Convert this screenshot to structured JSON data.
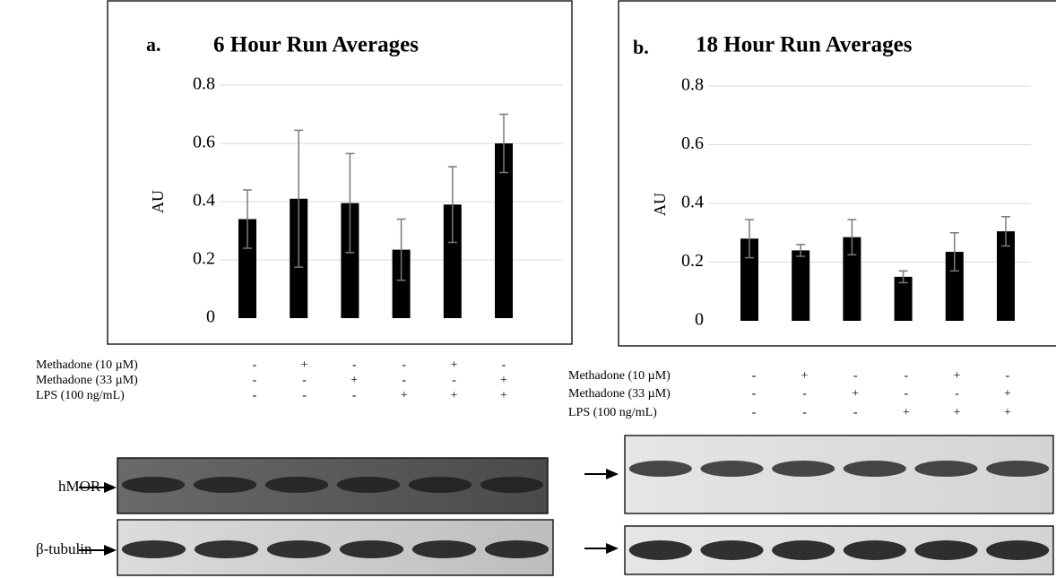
{
  "chart_data": [
    {
      "type": "bar",
      "panel": "a.",
      "title": "6 Hour Run Averages",
      "ylabel": "AU",
      "values": [
        0.34,
        0.41,
        0.395,
        0.235,
        0.39,
        0.6
      ],
      "errors": [
        0.1,
        0.235,
        0.17,
        0.105,
        0.13,
        0.1
      ],
      "color": "#000000",
      "ylim": [
        0,
        0.8
      ],
      "yticks": [
        0,
        0.2,
        0.4,
        0.6,
        0.8
      ],
      "grid": true,
      "treatments": [
        {
          "label": "Methadone (10 µM)",
          "marks": [
            "-",
            "+",
            "-",
            "-",
            "+",
            "-"
          ]
        },
        {
          "label": "Methadone (33 µM)",
          "marks": [
            "-",
            "-",
            "+",
            "-",
            "-",
            "+"
          ]
        },
        {
          "label": "LPS (100 ng/mL)",
          "marks": [
            "-",
            "-",
            "-",
            "+",
            "+",
            "+"
          ]
        }
      ],
      "blot_labels": [
        "hMOR",
        "β-tubulin"
      ]
    },
    {
      "type": "bar",
      "panel": "b.",
      "title": "18 Hour Run Averages",
      "ylabel": "AU",
      "values": [
        0.28,
        0.24,
        0.285,
        0.15,
        0.235,
        0.305
      ],
      "errors": [
        0.065,
        0.02,
        0.06,
        0.02,
        0.065,
        0.05
      ],
      "color": "#000000",
      "ylim": [
        0,
        0.8
      ],
      "yticks": [
        0,
        0.2,
        0.4,
        0.6,
        0.8
      ],
      "grid": true,
      "treatments": [
        {
          "label": "Methadone (10 µM)",
          "marks": [
            "-",
            "+",
            "-",
            "-",
            "+",
            "-"
          ]
        },
        {
          "label": "Methadone (33 µM)",
          "marks": [
            "-",
            "-",
            "+",
            "-",
            "-",
            "+"
          ]
        },
        {
          "label": "LPS (100 ng/mL)",
          "marks": [
            "-",
            "-",
            "-",
            "+",
            "+",
            "+"
          ]
        }
      ]
    }
  ]
}
